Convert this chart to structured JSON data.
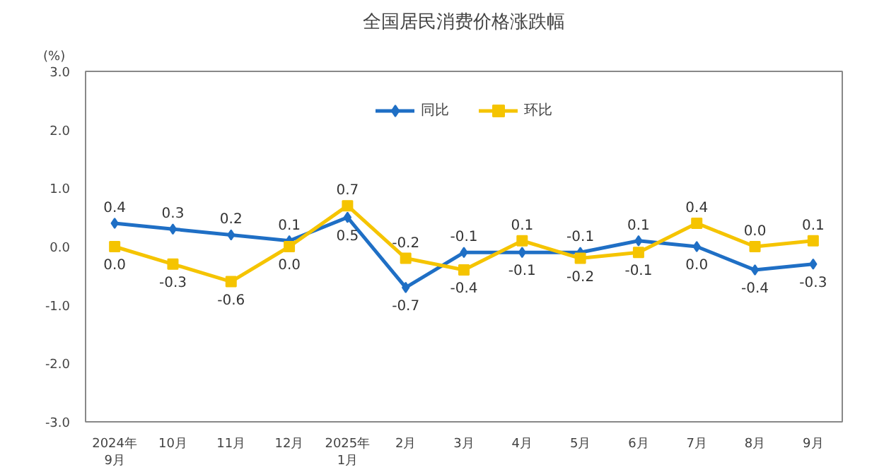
{
  "chart_data": {
    "type": "line",
    "title": "全国居民消费价格涨跌幅",
    "ylabel": "(%)",
    "categories": [
      "2024年\n9月",
      "10月",
      "11月",
      "12月",
      "2025年\n1月",
      "2月",
      "3月",
      "4月",
      "5月",
      "6月",
      "7月",
      "8月",
      "9月"
    ],
    "series": [
      {
        "name": "同比",
        "color": "#1f6fc5",
        "marker": "diamond",
        "values": [
          0.4,
          0.3,
          0.2,
          0.1,
          0.5,
          -0.7,
          -0.1,
          -0.1,
          -0.1,
          0.1,
          0.0,
          -0.4,
          -0.3
        ],
        "value_labels": [
          "0.4",
          "0.3",
          "0.2",
          "0.1",
          "0.5",
          "-0.7",
          "-0.1",
          "-0.1",
          "-0.1",
          "0.1",
          "0.0",
          "-0.4",
          "-0.3"
        ]
      },
      {
        "name": "环比",
        "color": "#f5c400",
        "marker": "square",
        "values": [
          0.0,
          -0.3,
          -0.6,
          0.0,
          0.7,
          -0.2,
          -0.4,
          0.1,
          -0.2,
          -0.1,
          0.4,
          0.0,
          0.1
        ],
        "value_labels": [
          "0.0",
          "-0.3",
          "-0.6",
          "0.0",
          "0.7",
          "-0.2",
          "-0.4",
          "0.1",
          "-0.2",
          "-0.1",
          "0.4",
          "0.0",
          "0.1"
        ]
      }
    ],
    "ylim": [
      -3.0,
      3.0
    ],
    "yticks": [
      {
        "value": -3,
        "label": "-3.0"
      },
      {
        "value": -2,
        "label": "-2.0"
      },
      {
        "value": -1,
        "label": "-1.0"
      },
      {
        "value": 0,
        "label": "0.0"
      },
      {
        "value": 1,
        "label": "1.0"
      },
      {
        "value": 2,
        "label": "2.0"
      },
      {
        "value": 3,
        "label": "3.0"
      }
    ],
    "grid": false,
    "legend": "top",
    "line_style": "solid"
  }
}
